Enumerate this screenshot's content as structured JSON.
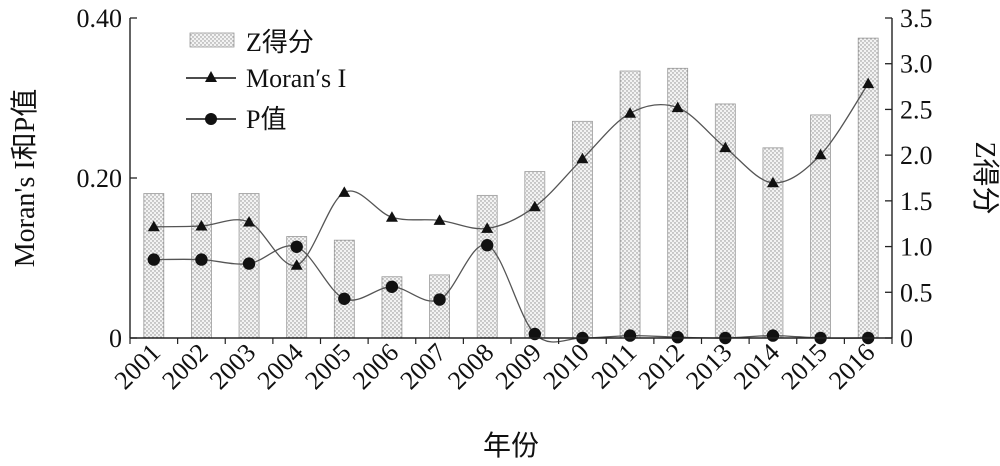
{
  "chart_data": {
    "type": "bar+line",
    "categories": [
      "2001",
      "2002",
      "2003",
      "2004",
      "2005",
      "2006",
      "2007",
      "2008",
      "2009",
      "2010",
      "2011",
      "2012",
      "2013",
      "2014",
      "2015",
      "2016"
    ],
    "xlabel": "年份",
    "ylabel_left": "Moran's I和P值",
    "ylabel_right": "Z得分",
    "y_left": {
      "lim": [
        0,
        0.4
      ],
      "ticks": [
        "0",
        "0.20",
        "0.40"
      ],
      "tick_values": [
        0,
        0.2,
        0.4
      ]
    },
    "y_right": {
      "lim": [
        0,
        3.5
      ],
      "ticks": [
        "0",
        "0.5",
        "1.0",
        "1.5",
        "2.0",
        "2.5",
        "3.0",
        "3.5"
      ],
      "tick_values": [
        0,
        0.5,
        1.0,
        1.5,
        2.0,
        2.5,
        3.0,
        3.5
      ]
    },
    "series": [
      {
        "name": "Z得分",
        "kind": "bar",
        "axis": "right",
        "values": [
          1.58,
          1.58,
          1.58,
          1.11,
          1.07,
          0.67,
          0.69,
          1.56,
          1.82,
          2.37,
          2.92,
          2.95,
          2.56,
          2.08,
          2.44,
          3.28
        ]
      },
      {
        "name": "Moran′s I",
        "kind": "line",
        "marker": "triangle",
        "axis": "left",
        "values": [
          0.139,
          0.14,
          0.145,
          0.091,
          0.182,
          0.151,
          0.147,
          0.137,
          0.164,
          0.224,
          0.281,
          0.288,
          0.238,
          0.194,
          0.229,
          0.318
        ]
      },
      {
        "name": "P值",
        "kind": "line",
        "marker": "circle",
        "axis": "left",
        "values": [
          0.098,
          0.098,
          0.093,
          0.114,
          0.049,
          0.064,
          0.048,
          0.116,
          0.005,
          0.0,
          0.003,
          0.001,
          0.0,
          0.003,
          0.0,
          0.0
        ]
      }
    ],
    "legend_placement": "top-left",
    "colors": {
      "bar_fill": "#f3f3f3",
      "bar_dots": "#8a8a8a",
      "line": "#555555",
      "marker": "#111111"
    }
  }
}
